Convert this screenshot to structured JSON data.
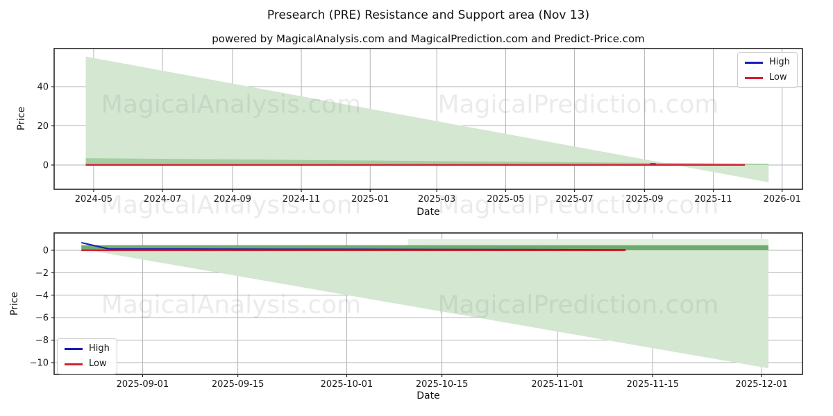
{
  "figure": {
    "title": "Presearch (PRE) Resistance and Support area (Nov 13)",
    "subtitle": "powered by MagicalAnalysis.com and MagicalPrediction.com and Predict-Price.com",
    "watermark_left": "MagicalAnalysis.com",
    "watermark_right": "MagicalPrediction.com",
    "colors": {
      "high_line": "#1a1ab8",
      "low_line": "#d62030",
      "area_light": "#d3e7d1",
      "area_halo": "#e3f0e1",
      "band_top_chart": "#a5cfa3",
      "band_bottom_chart": "#6faa6f",
      "grid": "#b3b3b3",
      "spine": "#262626",
      "tick_text": "#1a1a1a",
      "watermark": "rgba(128,128,128,0.16)"
    }
  },
  "chart_data": [
    {
      "type": "area",
      "name": "full-history",
      "xlabel": "Date",
      "ylabel": "Price",
      "x_range": [
        "2024-03-27",
        "2026-01-19"
      ],
      "ylim": [
        -12.4,
        59.5
      ],
      "grid": true,
      "x_ticks": [
        {
          "date": "2024-05-01",
          "label": "2024-05"
        },
        {
          "date": "2024-07-01",
          "label": "2024-07"
        },
        {
          "date": "2024-09-01",
          "label": "2024-09"
        },
        {
          "date": "2024-11-01",
          "label": "2024-11"
        },
        {
          "date": "2025-01-01",
          "label": "2025-01"
        },
        {
          "date": "2025-03-01",
          "label": "2025-03"
        },
        {
          "date": "2025-05-01",
          "label": "2025-05"
        },
        {
          "date": "2025-07-01",
          "label": "2025-07"
        },
        {
          "date": "2025-09-01",
          "label": "2025-09"
        },
        {
          "date": "2025-11-01",
          "label": "2025-11"
        },
        {
          "date": "2026-01-01",
          "label": "2026-01"
        }
      ],
      "y_ticks": [
        {
          "v": 0,
          "label": "0"
        },
        {
          "v": 20,
          "label": "20"
        },
        {
          "v": 40,
          "label": "40"
        }
      ],
      "fills": [
        {
          "name": "resistance-support-wedge",
          "color_key": "area_light",
          "top": [
            [
              "2024-04-24",
              55.4
            ],
            [
              "2025-12-20",
              -8.8
            ]
          ],
          "bottom": [
            [
              "2024-04-24",
              0
            ],
            [
              "2025-12-20",
              0
            ]
          ]
        },
        {
          "name": "support-band",
          "color_key": "band_top_chart",
          "top": [
            [
              "2024-04-24",
              3.5
            ],
            [
              "2025-12-20",
              0.6
            ]
          ],
          "bottom": [
            [
              "2024-04-24",
              0
            ],
            [
              "2025-12-20",
              0
            ]
          ]
        }
      ],
      "lines": [
        {
          "name": "high-line",
          "color_key": "high_line",
          "width": 2,
          "points": [
            [
              "2025-09-06",
              0.55
            ],
            [
              "2025-09-11",
              0.55
            ]
          ]
        },
        {
          "name": "low-line",
          "color_key": "low_line",
          "width": 2.4,
          "points": [
            [
              "2024-04-24",
              0.05
            ],
            [
              "2025-11-29",
              0.05
            ]
          ]
        }
      ],
      "legend": {
        "position": "top-right",
        "entries": [
          {
            "label": "High",
            "color_key": "high_line"
          },
          {
            "label": "Low",
            "color_key": "low_line"
          }
        ]
      }
    },
    {
      "type": "area",
      "name": "recent-zoom",
      "xlabel": "Date",
      "ylabel": "Price",
      "x_range": [
        "2025-08-19",
        "2025-12-07"
      ],
      "ylim": [
        -11.05,
        1.54
      ],
      "grid": true,
      "x_ticks": [
        {
          "date": "2025-09-01",
          "label": "2025-09-01"
        },
        {
          "date": "2025-09-15",
          "label": "2025-09-15"
        },
        {
          "date": "2025-10-01",
          "label": "2025-10-01"
        },
        {
          "date": "2025-10-15",
          "label": "2025-10-15"
        },
        {
          "date": "2025-11-01",
          "label": "2025-11-01"
        },
        {
          "date": "2025-11-15",
          "label": "2025-11-15"
        },
        {
          "date": "2025-12-01",
          "label": "2025-12-01"
        }
      ],
      "y_ticks": [
        {
          "v": 0,
          "label": "0"
        },
        {
          "v": -2,
          "label": "−2"
        },
        {
          "v": -4,
          "label": "−4"
        },
        {
          "v": -6,
          "label": "−6"
        },
        {
          "v": -8,
          "label": "−8"
        },
        {
          "v": -10,
          "label": "−10"
        }
      ],
      "fills": [
        {
          "name": "upper-halo",
          "color_key": "area_halo",
          "top": [
            [
              "2025-10-10",
              1.0
            ],
            [
              "2025-12-02",
              1.0
            ]
          ],
          "bottom": [
            [
              "2025-10-10",
              0.45
            ],
            [
              "2025-12-02",
              0.45
            ]
          ]
        },
        {
          "name": "support-wedge",
          "color_key": "area_light",
          "top": [
            [
              "2025-08-23",
              0.12
            ],
            [
              "2025-12-02",
              -10.5
            ]
          ],
          "bottom": [
            [
              "2025-08-23",
              0
            ],
            [
              "2025-12-02",
              0
            ]
          ]
        },
        {
          "name": "high-low-band",
          "color_key": "band_bottom_chart",
          "top": [
            [
              "2025-08-23",
              0.45
            ],
            [
              "2025-12-02",
              0.45
            ]
          ],
          "bottom": [
            [
              "2025-08-23",
              0
            ],
            [
              "2025-12-02",
              0
            ]
          ]
        }
      ],
      "lines": [
        {
          "name": "high-line",
          "color_key": "high_line",
          "width": 2,
          "points": [
            [
              "2025-08-23",
              0.68
            ],
            [
              "2025-08-27",
              0.12
            ],
            [
              "2025-11-11",
              0.05
            ]
          ]
        },
        {
          "name": "low-line",
          "color_key": "low_line",
          "width": 2.4,
          "points": [
            [
              "2025-08-23",
              0.0
            ],
            [
              "2025-11-11",
              0.0
            ]
          ]
        }
      ],
      "legend": {
        "position": "bottom-left",
        "entries": [
          {
            "label": "High",
            "color_key": "high_line"
          },
          {
            "label": "Low",
            "color_key": "low_line"
          }
        ]
      }
    }
  ]
}
